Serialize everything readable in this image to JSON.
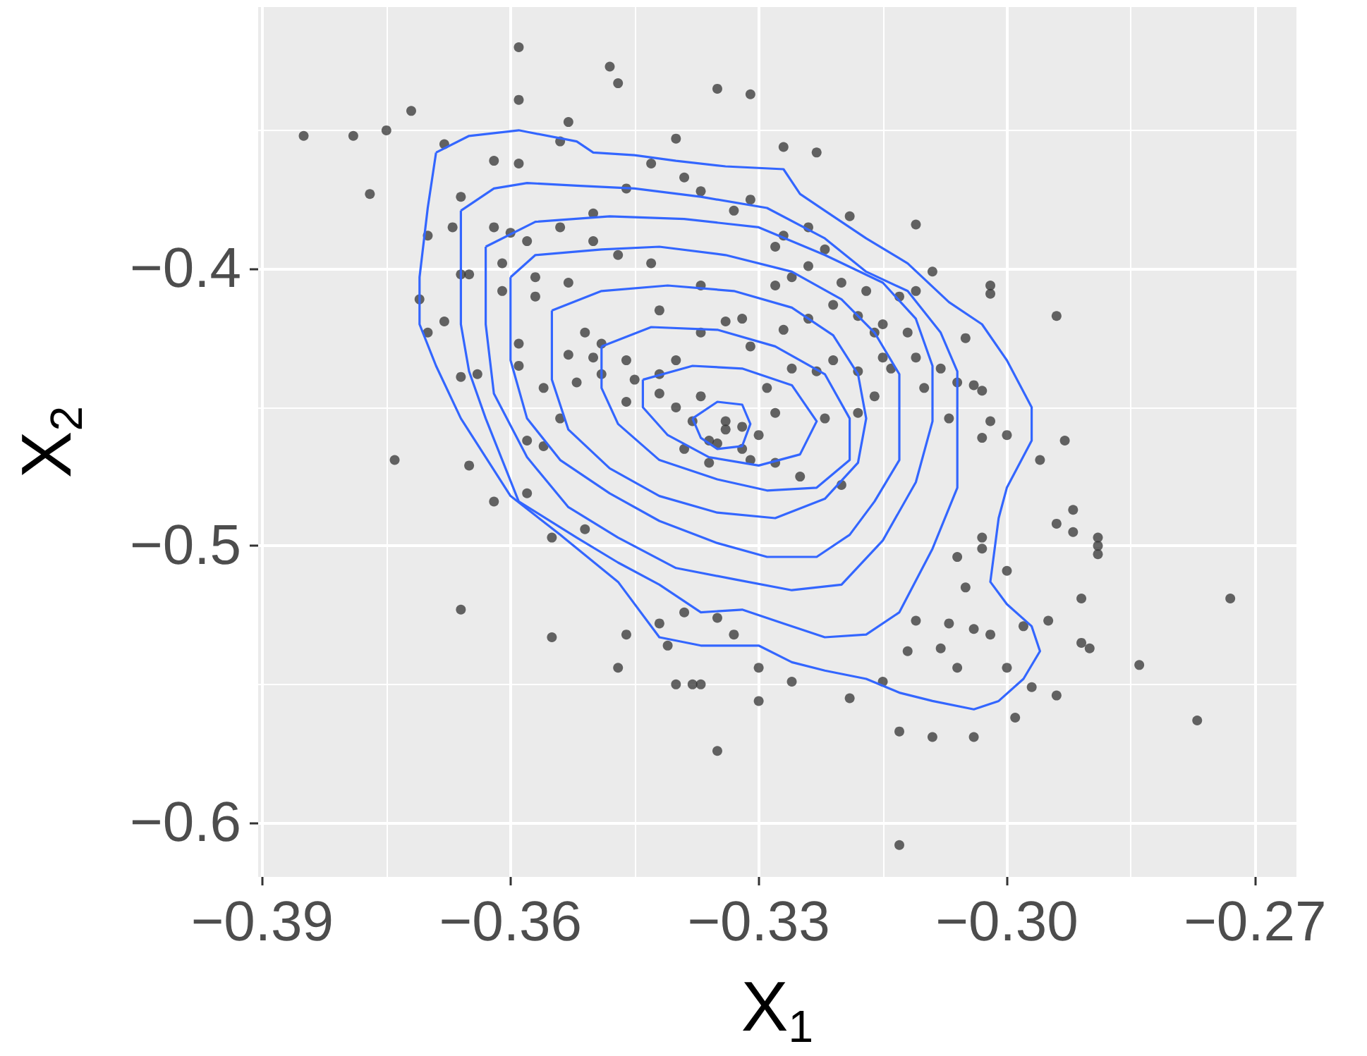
{
  "chart_data": {
    "type": "scatter",
    "xlabel": "X$_{1}$",
    "ylabel": "X$_{2}$",
    "xlim": [
      -0.3905,
      -0.265
    ],
    "ylim": [
      -0.6195,
      -0.3055
    ],
    "xticks": [
      {
        "value": -0.39,
        "label": "−0.39"
      },
      {
        "value": -0.36,
        "label": "−0.36"
      },
      {
        "value": -0.33,
        "label": "−0.33"
      },
      {
        "value": -0.3,
        "label": "−0.30"
      },
      {
        "value": -0.27,
        "label": "−0.27"
      }
    ],
    "yticks": [
      {
        "value": -0.6,
        "label": "−0.6"
      },
      {
        "value": -0.5,
        "label": "−0.5"
      },
      {
        "value": -0.4,
        "label": "−0.4"
      }
    ],
    "grid": true,
    "series": [
      {
        "marker": "circle",
        "color": "#333333",
        "x": [
          -0.385,
          -0.379,
          -0.375,
          -0.372,
          -0.377,
          -0.359,
          -0.359,
          -0.348,
          -0.347,
          -0.335,
          -0.331,
          -0.353,
          -0.34,
          -0.327,
          -0.323,
          -0.311,
          -0.309,
          -0.302,
          -0.302,
          -0.294,
          -0.293,
          -0.296,
          -0.292,
          -0.294,
          -0.292,
          -0.289,
          -0.289,
          -0.289,
          -0.291,
          -0.273,
          -0.295,
          -0.291,
          -0.29,
          -0.284,
          -0.277,
          -0.294,
          -0.297,
          -0.299,
          -0.304,
          -0.309,
          -0.313,
          -0.313,
          -0.319,
          -0.33,
          -0.326,
          -0.315,
          -0.3,
          -0.298,
          -0.302,
          -0.308,
          -0.304,
          -0.307,
          -0.311,
          -0.312,
          -0.306,
          -0.3,
          -0.305,
          -0.306,
          -0.303,
          -0.303,
          -0.374,
          -0.366,
          -0.355,
          -0.347,
          -0.346,
          -0.34,
          -0.338,
          -0.337,
          -0.335,
          -0.33,
          -0.341,
          -0.342,
          -0.333,
          -0.335,
          -0.339,
          -0.365,
          -0.362,
          -0.355,
          -0.358,
          -0.351,
          -0.368,
          -0.362,
          -0.359,
          -0.354,
          -0.366,
          -0.367,
          -0.37,
          -0.371,
          -0.37,
          -0.368,
          -0.366,
          -0.364,
          -0.366,
          -0.365,
          -0.362,
          -0.36,
          -0.361,
          -0.358,
          -0.357,
          -0.361,
          -0.354,
          -0.35,
          -0.346,
          -0.343,
          -0.339,
          -0.337,
          -0.333,
          -0.331,
          -0.343,
          -0.347,
          -0.35,
          -0.353,
          -0.357,
          -0.359,
          -0.359,
          -0.356,
          -0.353,
          -0.351,
          -0.349,
          -0.346,
          -0.342,
          -0.337,
          -0.334,
          -0.332,
          -0.328,
          -0.337,
          -0.34,
          -0.342,
          -0.337,
          -0.334,
          -0.332,
          -0.339,
          -0.346,
          -0.349,
          -0.352,
          -0.354,
          -0.356,
          -0.358,
          -0.335,
          -0.331,
          -0.327,
          -0.324,
          -0.328,
          -0.322,
          -0.324,
          -0.326,
          -0.32,
          -0.317,
          -0.319,
          -0.321,
          -0.318,
          -0.316,
          -0.315,
          -0.313,
          -0.311,
          -0.312,
          -0.311,
          -0.308,
          -0.305,
          -0.304,
          -0.303,
          -0.306,
          -0.31,
          -0.314,
          -0.315,
          -0.318,
          -0.321,
          -0.323,
          -0.326,
          -0.329,
          -0.331,
          -0.327,
          -0.324,
          -0.322,
          -0.318,
          -0.316,
          -0.307,
          -0.302,
          -0.3,
          -0.303,
          -0.334,
          -0.336,
          -0.332,
          -0.338,
          -0.33,
          -0.34,
          -0.328,
          -0.336,
          -0.342,
          -0.325,
          -0.32,
          -0.345,
          -0.35,
          -0.328
        ],
        "values": [
          -0.352,
          -0.352,
          -0.35,
          -0.343,
          -0.373,
          -0.32,
          -0.339,
          -0.327,
          -0.333,
          -0.335,
          -0.337,
          -0.347,
          -0.353,
          -0.356,
          -0.358,
          -0.384,
          -0.401,
          -0.406,
          -0.409,
          -0.417,
          -0.462,
          -0.469,
          -0.487,
          -0.492,
          -0.495,
          -0.497,
          -0.5,
          -0.503,
          -0.519,
          -0.519,
          -0.527,
          -0.535,
          -0.537,
          -0.543,
          -0.563,
          -0.554,
          -0.551,
          -0.562,
          -0.569,
          -0.569,
          -0.567,
          -0.608,
          -0.555,
          -0.556,
          -0.549,
          -0.549,
          -0.544,
          -0.529,
          -0.532,
          -0.537,
          -0.53,
          -0.528,
          -0.527,
          -0.538,
          -0.544,
          -0.509,
          -0.515,
          -0.504,
          -0.497,
          -0.501,
          -0.469,
          -0.523,
          -0.533,
          -0.544,
          -0.532,
          -0.55,
          -0.55,
          -0.55,
          -0.574,
          -0.544,
          -0.536,
          -0.528,
          -0.532,
          -0.526,
          -0.524,
          -0.471,
          -0.484,
          -0.497,
          -0.481,
          -0.494,
          -0.355,
          -0.361,
          -0.362,
          -0.354,
          -0.374,
          -0.385,
          -0.388,
          -0.411,
          -0.423,
          -0.419,
          -0.439,
          -0.438,
          -0.402,
          -0.402,
          -0.385,
          -0.387,
          -0.398,
          -0.39,
          -0.41,
          -0.408,
          -0.385,
          -0.38,
          -0.371,
          -0.362,
          -0.367,
          -0.372,
          -0.379,
          -0.375,
          -0.398,
          -0.395,
          -0.39,
          -0.405,
          -0.403,
          -0.427,
          -0.435,
          -0.443,
          -0.431,
          -0.423,
          -0.427,
          -0.433,
          -0.415,
          -0.406,
          -0.419,
          -0.418,
          -0.406,
          -0.423,
          -0.433,
          -0.438,
          -0.446,
          -0.455,
          -0.457,
          -0.465,
          -0.448,
          -0.438,
          -0.441,
          -0.454,
          -0.464,
          -0.462,
          -0.463,
          -0.469,
          -0.388,
          -0.385,
          -0.392,
          -0.393,
          -0.399,
          -0.403,
          -0.405,
          -0.408,
          -0.381,
          -0.413,
          -0.417,
          -0.423,
          -0.42,
          -0.41,
          -0.408,
          -0.423,
          -0.432,
          -0.436,
          -0.425,
          -0.442,
          -0.444,
          -0.441,
          -0.443,
          -0.436,
          -0.432,
          -0.437,
          -0.433,
          -0.437,
          -0.436,
          -0.443,
          -0.428,
          -0.422,
          -0.418,
          -0.454,
          -0.452,
          -0.446,
          -0.454,
          -0.455,
          -0.46,
          -0.461,
          -0.458,
          -0.462,
          -0.465,
          -0.455,
          -0.46,
          -0.45,
          -0.47,
          -0.47,
          -0.445,
          -0.475,
          -0.478,
          -0.44,
          -0.432,
          -0.452
        ]
      }
    ]
  }
}
